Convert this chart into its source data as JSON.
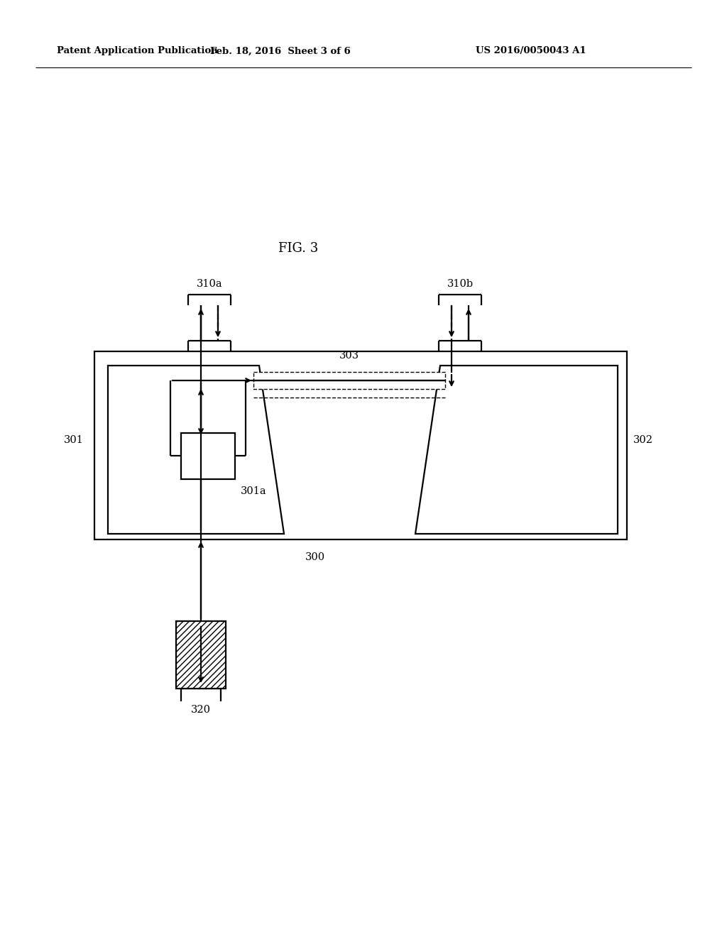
{
  "bg_color": "#ffffff",
  "lc": "#000000",
  "header_left": "Patent Application Publication",
  "header_mid": "Feb. 18, 2016  Sheet 3 of 6",
  "header_right": "US 2016/0050043 A1",
  "fig_label": "FIG. 3",
  "label_310a": "310a",
  "label_310b": "310b",
  "label_303": "303",
  "label_302": "302",
  "label_301": "301",
  "label_301a": "301a",
  "label_300": "300",
  "label_320": "320",
  "lw": 1.6,
  "lw_thin": 1.0,
  "fs": 10.5,
  "fs_hdr": 9.5,
  "fs_fig": 13
}
